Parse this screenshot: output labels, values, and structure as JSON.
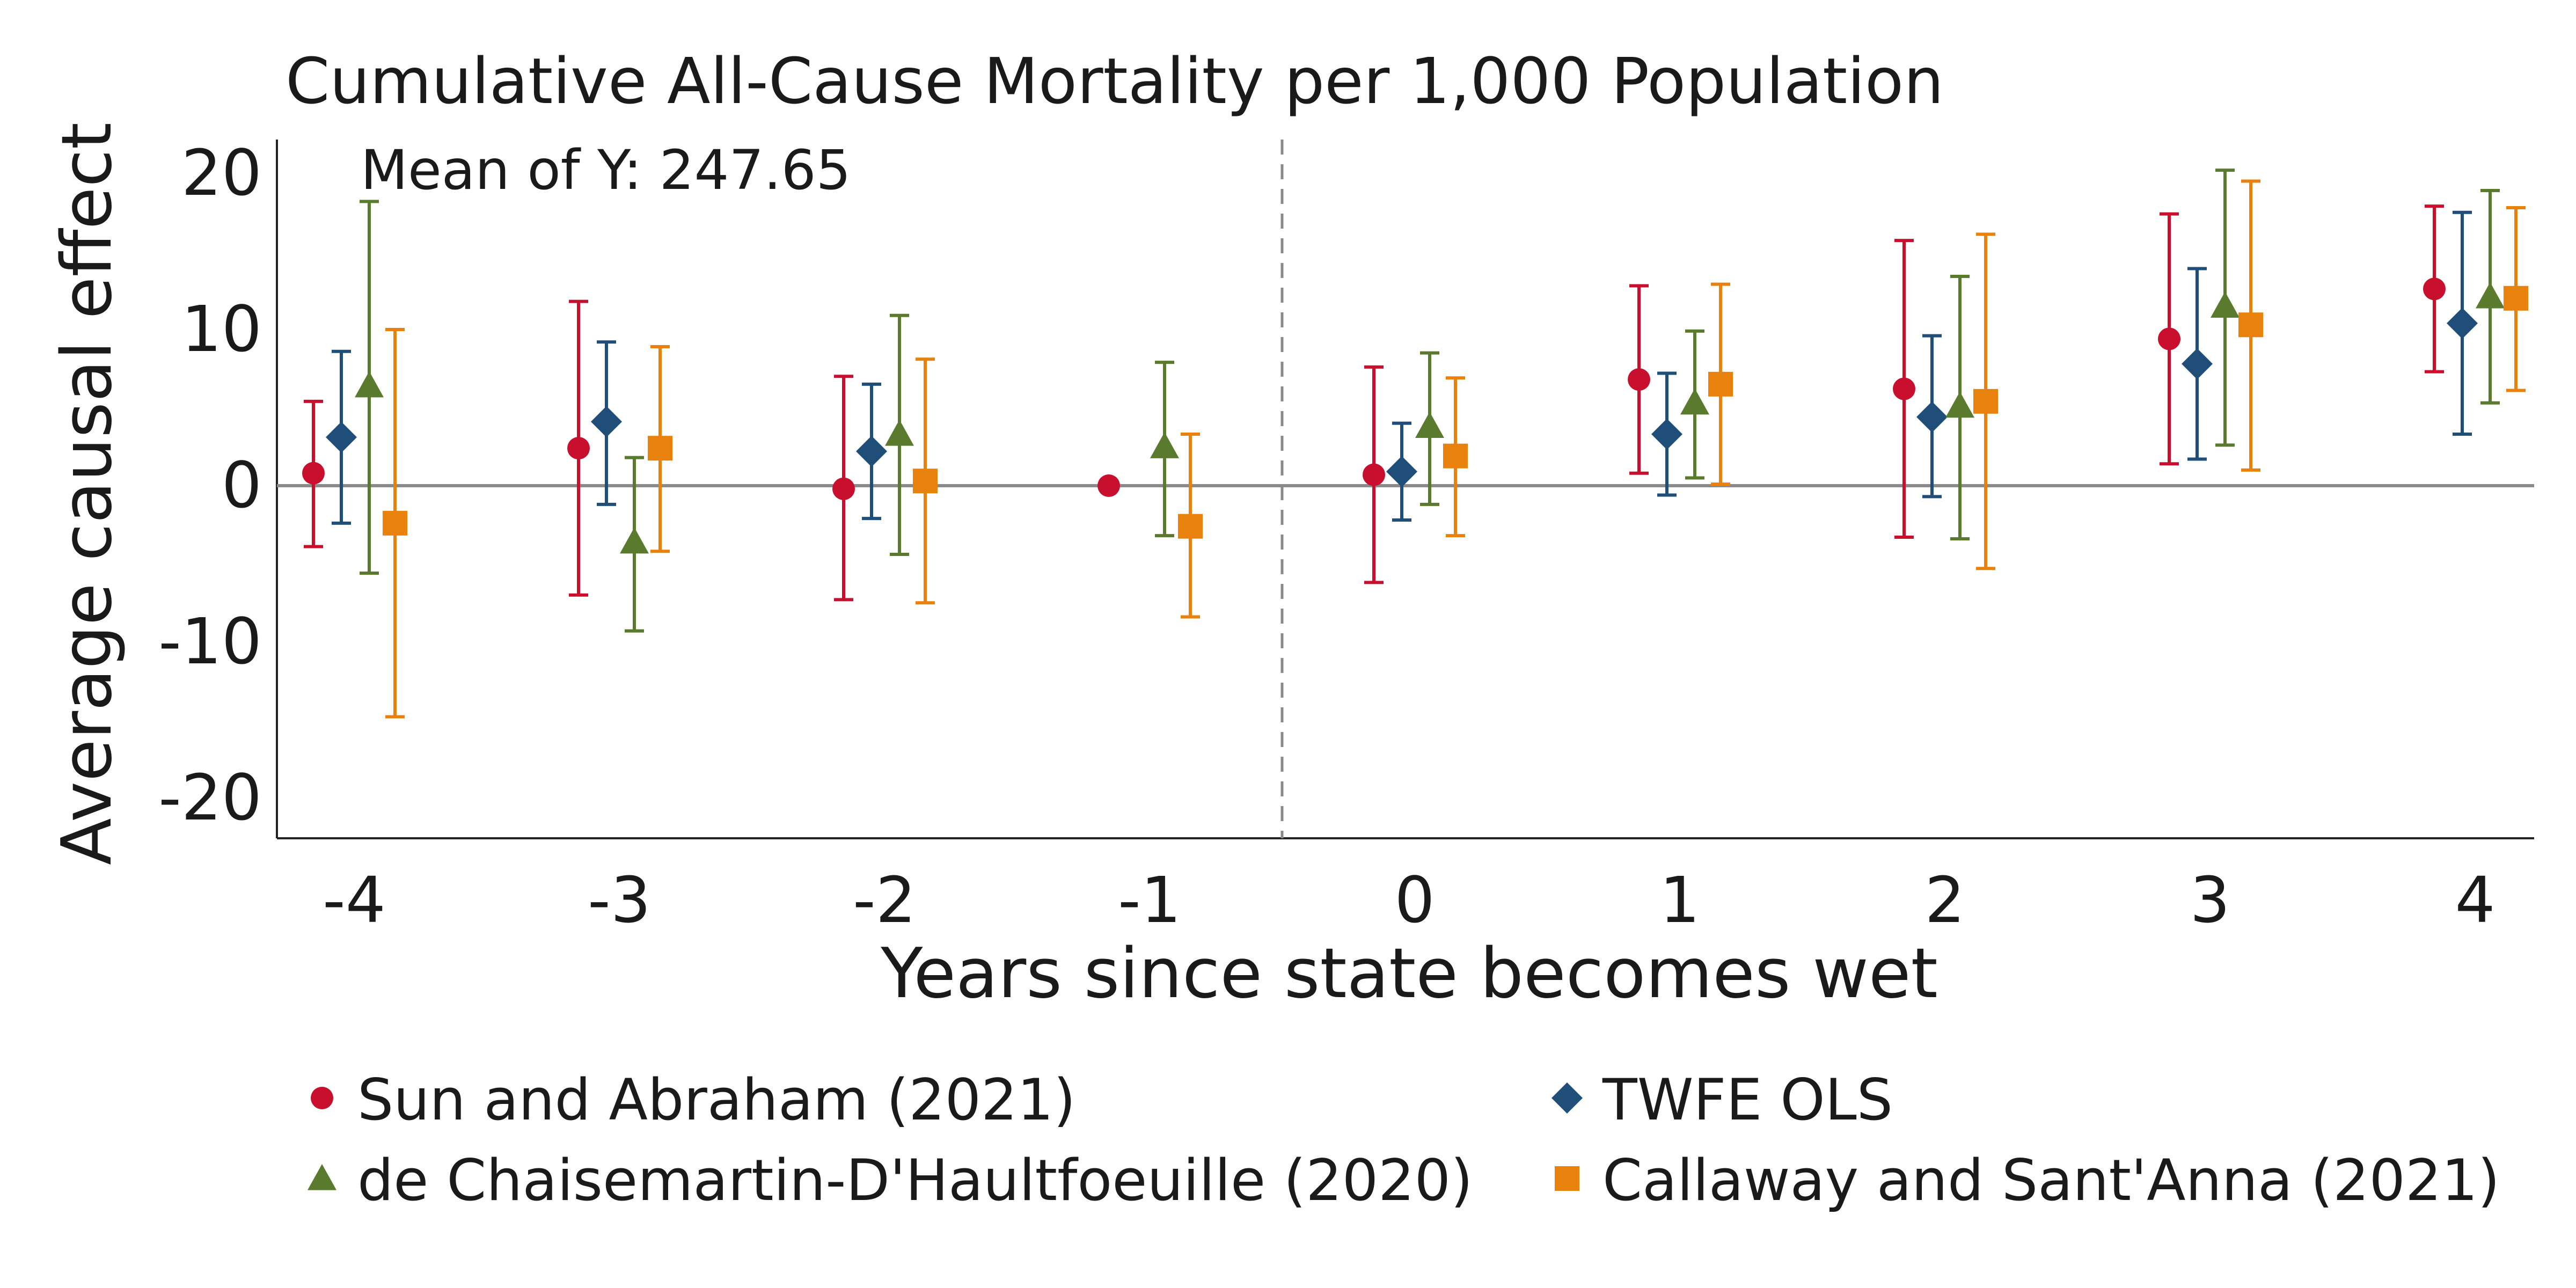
{
  "chart_data": {
    "type": "scatter",
    "title": "Cumulative All-Cause Mortality per 1,000 Population",
    "annotation": "Mean of Y: 247.65",
    "xlabel": "Years since state becomes wet",
    "ylabel": "Average causal effect",
    "x_categories": [
      "-4",
      "-3",
      "-2",
      "-1",
      "0",
      "1",
      "2",
      "3",
      "4"
    ],
    "x_values": [
      -4,
      -3,
      -2,
      -1,
      0,
      1,
      2,
      3,
      4
    ],
    "ylim": [
      -22,
      22
    ],
    "yticks": [
      20,
      10,
      0,
      -10,
      -20
    ],
    "ytick_labels": [
      "20",
      "10",
      "0",
      "-10",
      "-20"
    ],
    "reference_line_y": 0,
    "treatment_line_x": -0.5,
    "grid": false,
    "legend_position": "bottom",
    "series": [
      {
        "name": "Sun and Abraham (2021)",
        "marker": "circle",
        "color": "#c8102e",
        "estimates": [
          0.8,
          2.4,
          -0.2,
          0.0,
          0.7,
          6.8,
          6.2,
          9.4,
          12.6
        ],
        "ci_low": [
          -3.9,
          -7.0,
          -7.3,
          null,
          -6.2,
          0.8,
          -3.3,
          1.4,
          7.3
        ],
        "ci_high": [
          5.4,
          11.8,
          7.0,
          null,
          7.6,
          12.8,
          15.7,
          17.4,
          17.9
        ]
      },
      {
        "name": "TWFE OLS",
        "marker": "diamond",
        "color": "#1f4e79",
        "estimates": [
          3.1,
          4.1,
          2.2,
          null,
          0.9,
          3.3,
          4.4,
          7.8,
          10.4
        ],
        "ci_low": [
          -2.4,
          -1.2,
          -2.1,
          null,
          -2.2,
          -0.6,
          -0.7,
          1.7,
          3.3
        ],
        "ci_high": [
          8.6,
          9.2,
          6.5,
          null,
          4.0,
          7.2,
          9.6,
          13.9,
          17.5
        ]
      },
      {
        "name": "de Chaisemartin-D'Haultfoeuille (2020)",
        "marker": "triangle",
        "color": "#5a7a2e",
        "estimates": [
          6.4,
          -3.6,
          3.3,
          2.5,
          3.8,
          5.3,
          5.1,
          11.5,
          12.1
        ],
        "ci_low": [
          -5.6,
          -9.3,
          -4.4,
          -3.2,
          -1.2,
          0.5,
          -3.4,
          2.6,
          5.3
        ],
        "ci_high": [
          18.2,
          1.8,
          10.9,
          7.9,
          8.5,
          9.9,
          13.4,
          20.2,
          18.9
        ]
      },
      {
        "name": "Callaway and Sant'Anna (2021)",
        "marker": "square",
        "color": "#e8820c",
        "estimates": [
          -2.4,
          2.4,
          0.3,
          -2.6,
          1.9,
          6.5,
          5.4,
          10.3,
          12.0
        ],
        "ci_low": [
          -14.8,
          -4.2,
          -7.5,
          -8.4,
          -3.2,
          0.1,
          -5.3,
          1.0,
          6.1
        ],
        "ci_high": [
          10.0,
          8.9,
          8.1,
          3.3,
          6.9,
          12.9,
          16.1,
          19.5,
          17.8
        ]
      }
    ]
  }
}
